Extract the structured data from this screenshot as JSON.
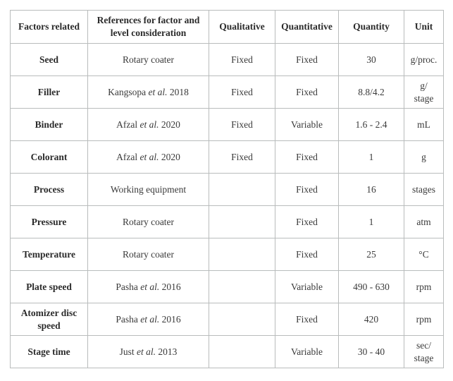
{
  "style": {
    "border_color": "#b9bcbc",
    "text_color": "#3a3a3a",
    "bold_text_color": "#2b2b2b",
    "background_color": "#ffffff"
  },
  "table": {
    "columns": [
      "Factors related",
      "References for factor and level consideration",
      "Qualitative",
      "Quantitative",
      "Quantity",
      "Unit"
    ],
    "rows": [
      {
        "factor": "Seed",
        "ref_prefix": "Rotary coater",
        "ref_italic": "",
        "ref_suffix": "",
        "qualitative": "Fixed",
        "quantitative": "Fixed",
        "quantity": "30",
        "unit": "g/proc."
      },
      {
        "factor": "Filler",
        "ref_prefix": "Kangsopa ",
        "ref_italic": "et al.",
        "ref_suffix": " 2018",
        "qualitative": "Fixed",
        "quantitative": "Fixed",
        "quantity": "8.8/4.2",
        "unit": "g/\nstage"
      },
      {
        "factor": "Binder",
        "ref_prefix": "Afzal ",
        "ref_italic": "et al.",
        "ref_suffix": " 2020",
        "qualitative": "Fixed",
        "quantitative": "Variable",
        "quantity": "1.6 - 2.4",
        "unit": "mL"
      },
      {
        "factor": "Colorant",
        "ref_prefix": "Afzal ",
        "ref_italic": "et al.",
        "ref_suffix": " 2020",
        "qualitative": "Fixed",
        "quantitative": "Fixed",
        "quantity": "1",
        "unit": "g"
      },
      {
        "factor": "Process",
        "ref_prefix": "Working equipment",
        "ref_italic": "",
        "ref_suffix": "",
        "qualitative": "",
        "quantitative": "Fixed",
        "quantity": "16",
        "unit": "stages"
      },
      {
        "factor": "Pressure",
        "ref_prefix": "Rotary coater",
        "ref_italic": "",
        "ref_suffix": "",
        "qualitative": "",
        "quantitative": "Fixed",
        "quantity": "1",
        "unit": "atm"
      },
      {
        "factor": "Temperature",
        "ref_prefix": "Rotary coater",
        "ref_italic": "",
        "ref_suffix": "",
        "qualitative": "",
        "quantitative": "Fixed",
        "quantity": "25",
        "unit": "°C"
      },
      {
        "factor": "Plate speed",
        "ref_prefix": "Pasha ",
        "ref_italic": "et al.",
        "ref_suffix": " 2016",
        "qualitative": "",
        "quantitative": "Variable",
        "quantity": "490 - 630",
        "unit": "rpm"
      },
      {
        "factor": "Atomizer disc speed",
        "ref_prefix": "Pasha ",
        "ref_italic": "et al.",
        "ref_suffix": " 2016",
        "qualitative": "",
        "quantitative": "Fixed",
        "quantity": "420",
        "unit": "rpm"
      },
      {
        "factor": "Stage time",
        "ref_prefix": "Just ",
        "ref_italic": "et al.",
        "ref_suffix": " 2013",
        "qualitative": "",
        "quantitative": "Variable",
        "quantity": "30 - 40",
        "unit": "sec/\nstage"
      }
    ]
  }
}
